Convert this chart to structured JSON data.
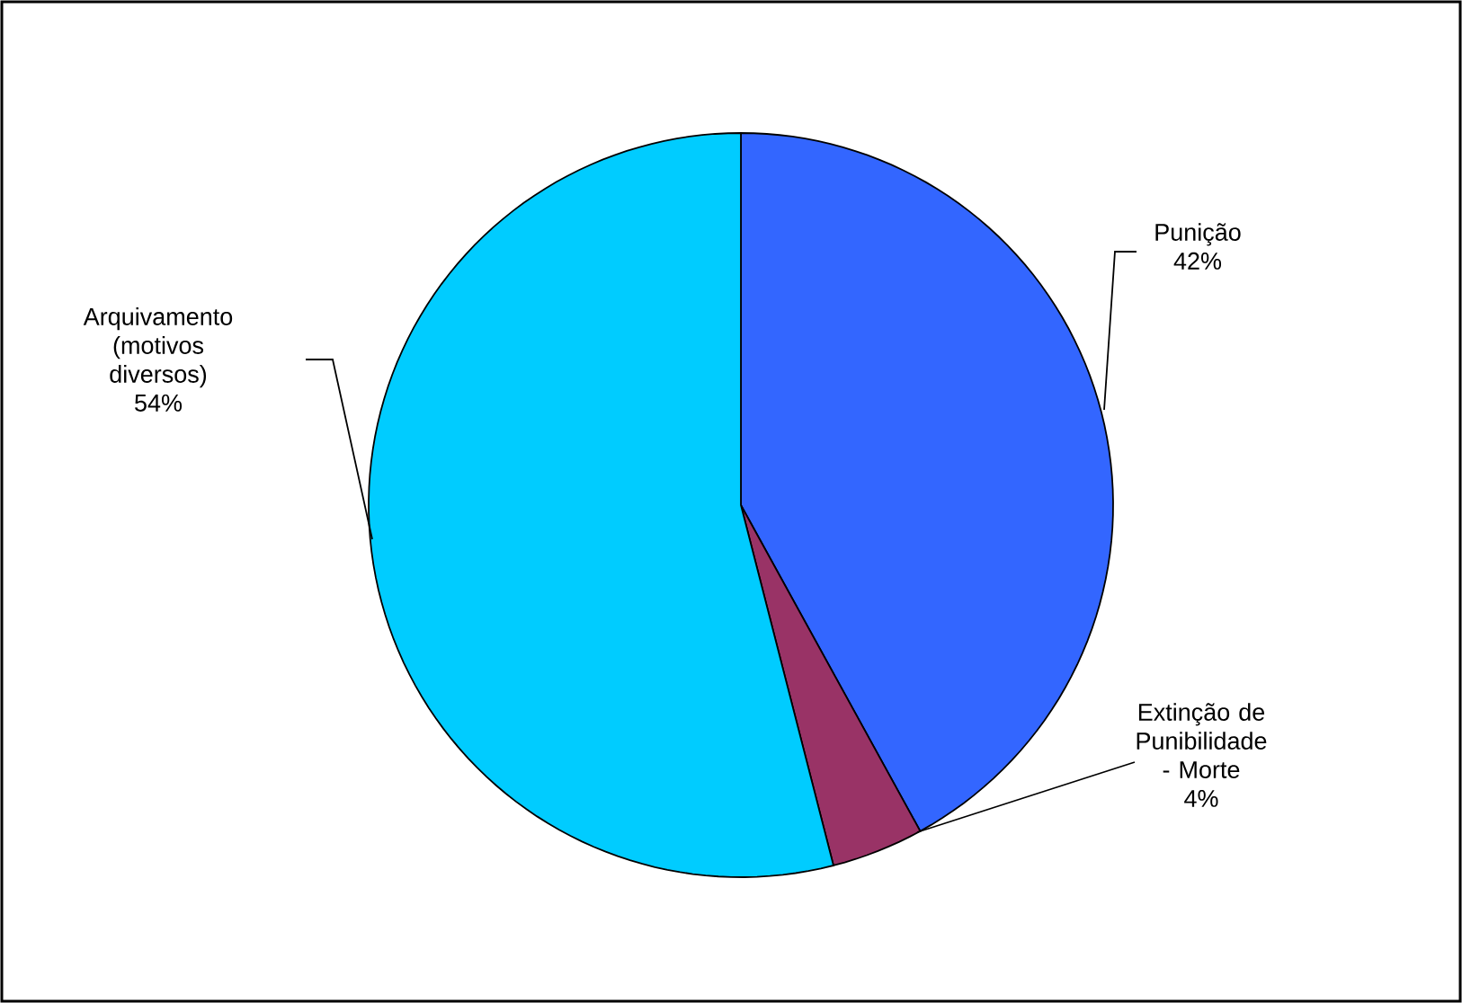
{
  "chart_data": {
    "type": "pie",
    "categories": [
      "Punição",
      "Extinção de Punibilidade - Morte",
      "Arquivamento (motivos diversos)"
    ],
    "values": [
      42,
      4,
      54
    ],
    "value_labels": [
      "42%",
      "4%",
      "54%"
    ],
    "colors": [
      "#3366ff",
      "#993366",
      "#00ccff"
    ]
  }
}
